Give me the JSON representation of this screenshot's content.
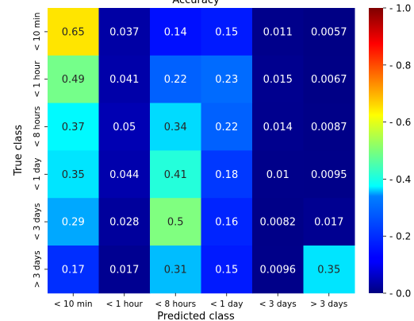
{
  "chart_data": {
    "type": "heatmap",
    "title": "Accuracy",
    "xlabel": "Predicted class",
    "ylabel": "True class",
    "x_categories": [
      "< 10 min",
      "< 1 hour",
      "< 8 hours",
      "< 1 day",
      "< 3 days",
      "> 3 days"
    ],
    "y_categories": [
      "< 10 min",
      "< 1 hour",
      "< 8 hours",
      "< 1 day",
      "< 3 days",
      "> 3 days"
    ],
    "values": [
      [
        0.65,
        0.037,
        0.14,
        0.15,
        0.011,
        0.0057
      ],
      [
        0.49,
        0.041,
        0.22,
        0.23,
        0.015,
        0.0067
      ],
      [
        0.37,
        0.05,
        0.34,
        0.22,
        0.014,
        0.0087
      ],
      [
        0.35,
        0.044,
        0.41,
        0.18,
        0.01,
        0.0095
      ],
      [
        0.29,
        0.028,
        0.5,
        0.16,
        0.0082,
        0.017
      ],
      [
        0.17,
        0.017,
        0.31,
        0.15,
        0.0096,
        0.35
      ]
    ],
    "value_labels": [
      [
        "0.65",
        "0.037",
        "0.14",
        "0.15",
        "0.011",
        "0.0057"
      ],
      [
        "0.49",
        "0.041",
        "0.22",
        "0.23",
        "0.015",
        "0.0067"
      ],
      [
        "0.37",
        "0.05",
        "0.34",
        "0.22",
        "0.014",
        "0.0087"
      ],
      [
        "0.35",
        "0.044",
        "0.41",
        "0.18",
        "0.01",
        "0.0095"
      ],
      [
        "0.29",
        "0.028",
        "0.5",
        "0.16",
        "0.0082",
        "0.017"
      ],
      [
        "0.17",
        "0.017",
        "0.31",
        "0.15",
        "0.0096",
        "0.35"
      ]
    ],
    "colormap": "jet",
    "vmin": 0.0,
    "vmax": 1.0,
    "colorbar_ticks": [
      "0.0",
      "0.2",
      "0.4",
      "0.6",
      "0.8",
      "1.0"
    ],
    "colorbar_tick_values": [
      0.0,
      0.2,
      0.4,
      0.6,
      0.8,
      1.0
    ]
  }
}
